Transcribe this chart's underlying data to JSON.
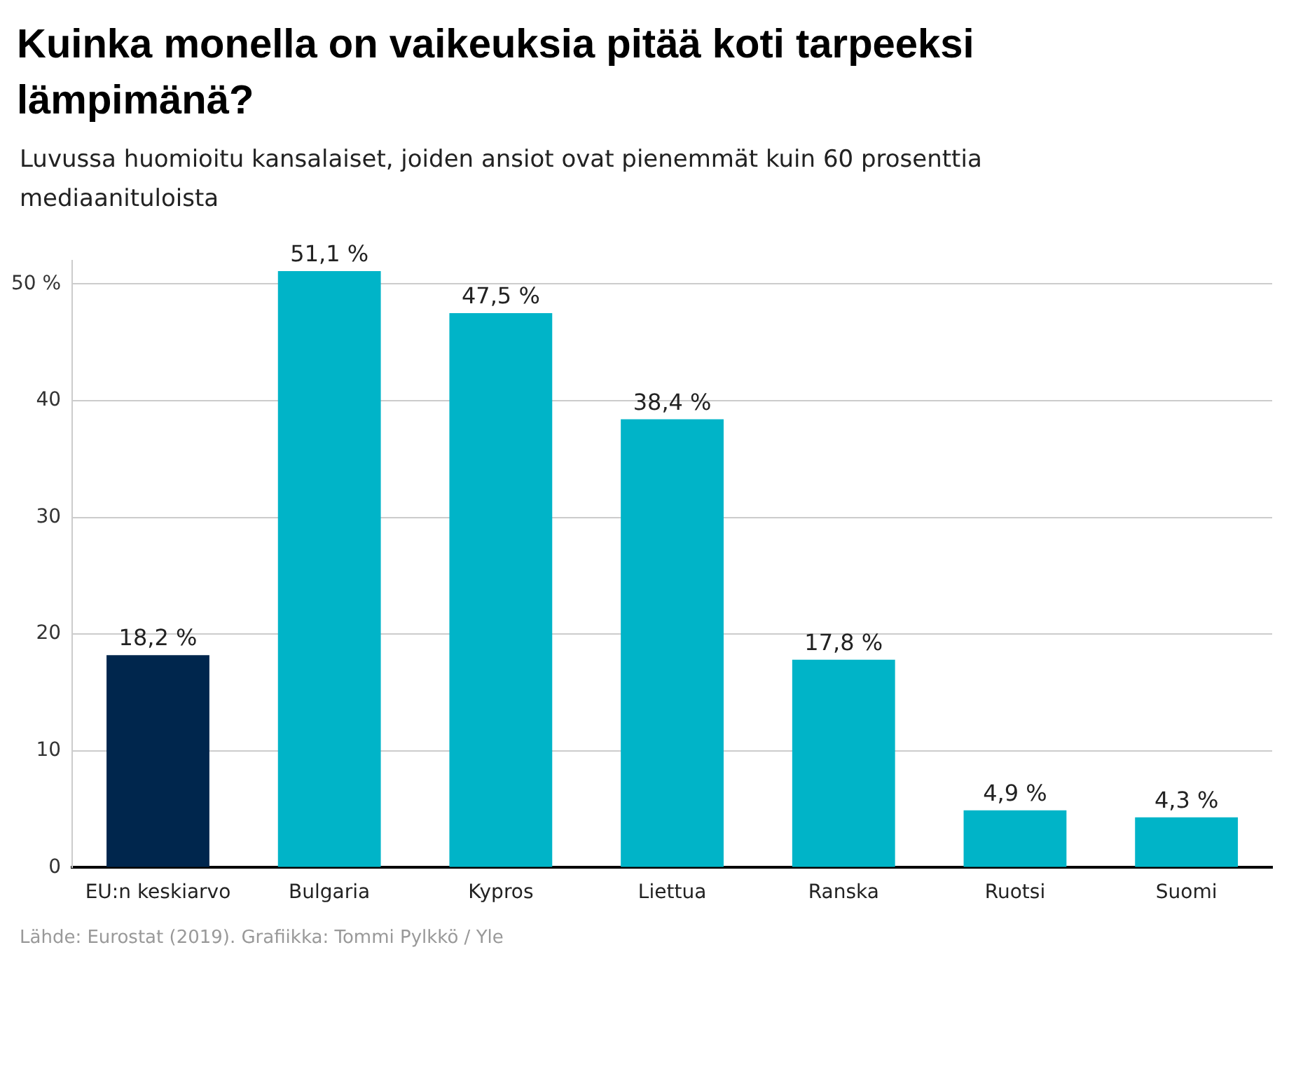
{
  "chart_data": {
    "type": "bar",
    "title": "Kuinka monella on vaikeuksia pitää koti tarpeeksi lämpimänä?",
    "subtitle": "Luvussa huomioitu kansalaiset, joiden ansiot ovat pienemmät kuin 60 prosenttia mediaanituloista",
    "categories": [
      "EU:n keskiarvo",
      "Bulgaria",
      "Kypros",
      "Liettua",
      "Ranska",
      "Ruotsi",
      "Suomi"
    ],
    "values": [
      18.2,
      51.1,
      47.5,
      38.4,
      17.8,
      4.9,
      4.3
    ],
    "colors": [
      "#00264d",
      "#00b4c8",
      "#00b4c8",
      "#00b4c8",
      "#00b4c8",
      "#00b4c8",
      "#00b4c8"
    ],
    "value_labels": [
      "18,2 %",
      "51,1 %",
      "47,5 %",
      "38,4 %",
      "17,8 %",
      "4,9 %",
      "4,3 %"
    ],
    "ylim": [
      0,
      52
    ],
    "yticks": [
      0,
      10,
      20,
      30,
      40,
      {
        "value": 50,
        "label": "50 %"
      }
    ],
    "grid": "y",
    "legend": false,
    "annotations": [
      "Lähde: Eurostat (2019). Grafiikka: Tommi Pylkkö / Yle"
    ]
  }
}
